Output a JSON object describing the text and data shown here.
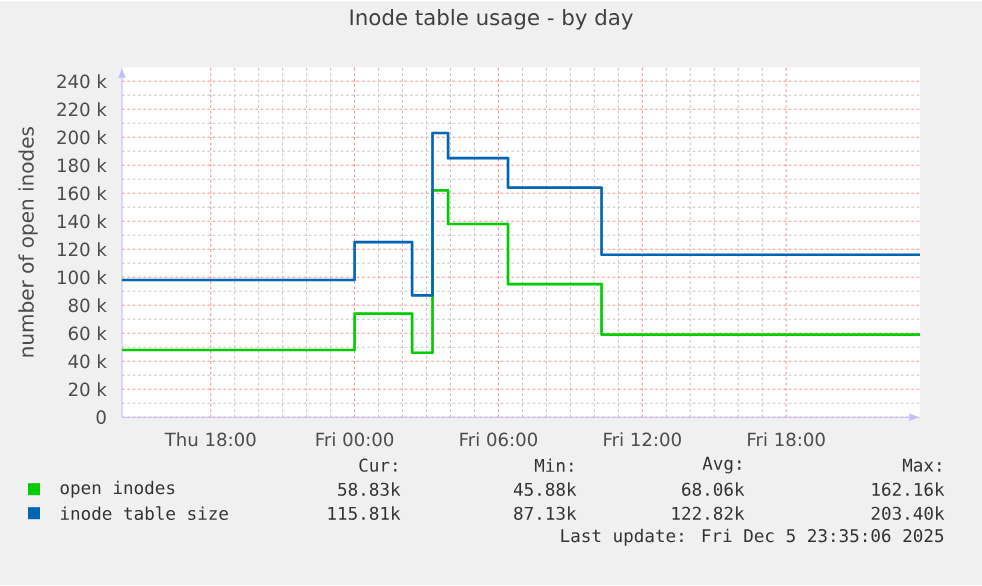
{
  "chart_data": {
    "type": "step",
    "title": "Inode table usage - by day",
    "ylabel": "number of open inodes",
    "xlim": [
      "2025-12-04T14:18",
      "2025-12-05T23:35"
    ],
    "xticks": [
      {
        "value": "2025-12-04T18:00",
        "label": "Thu 18:00"
      },
      {
        "value": "2025-12-05T00:00",
        "label": "Fri 00:00"
      },
      {
        "value": "2025-12-05T06:00",
        "label": "Fri 06:00"
      },
      {
        "value": "2025-12-05T12:00",
        "label": "Fri 12:00"
      },
      {
        "value": "2025-12-05T18:00",
        "label": "Fri 18:00"
      }
    ],
    "ylim": [
      0,
      250000
    ],
    "yticks": [
      {
        "value": 0,
        "label": "0"
      },
      {
        "value": 20000,
        "label": "20 k"
      },
      {
        "value": 40000,
        "label": "40 k"
      },
      {
        "value": 60000,
        "label": "60 k"
      },
      {
        "value": 80000,
        "label": "80 k"
      },
      {
        "value": 100000,
        "label": "100 k"
      },
      {
        "value": 120000,
        "label": "120 k"
      },
      {
        "value": 140000,
        "label": "140 k"
      },
      {
        "value": 160000,
        "label": "160 k"
      },
      {
        "value": 180000,
        "label": "180 k"
      },
      {
        "value": 200000,
        "label": "200 k"
      },
      {
        "value": 220000,
        "label": "220 k"
      },
      {
        "value": 240000,
        "label": "240 k"
      }
    ],
    "grid": true,
    "legend": "bottom",
    "series": [
      {
        "name": "open inodes",
        "color": "#00cc00",
        "x": [
          "2025-12-04T14:18",
          "2025-12-05T00:00",
          "2025-12-05T02:24",
          "2025-12-05T03:15",
          "2025-12-05T03:54",
          "2025-12-05T06:24",
          "2025-12-05T10:18",
          "2025-12-05T23:35"
        ],
        "values": [
          48000,
          74000,
          46000,
          162000,
          138000,
          95000,
          59000,
          59000
        ]
      },
      {
        "name": "inode table size",
        "color": "#0066b3",
        "x": [
          "2025-12-04T14:18",
          "2025-12-05T00:00",
          "2025-12-05T02:24",
          "2025-12-05T03:15",
          "2025-12-05T03:54",
          "2025-12-05T06:24",
          "2025-12-05T10:18",
          "2025-12-05T23:35"
        ],
        "values": [
          98000,
          125000,
          87000,
          203000,
          185000,
          164000,
          116000,
          116000
        ]
      }
    ],
    "annotations": [
      "Cur:",
      "Min:",
      "Avg:",
      "Max:",
      "58.83k",
      "45.88k",
      "68.06k",
      "162.16k",
      "115.81k",
      "87.13k",
      "122.82k",
      "203.40k",
      "Last update: Fri Dec  5 23:35:06 2025"
    ]
  }
}
